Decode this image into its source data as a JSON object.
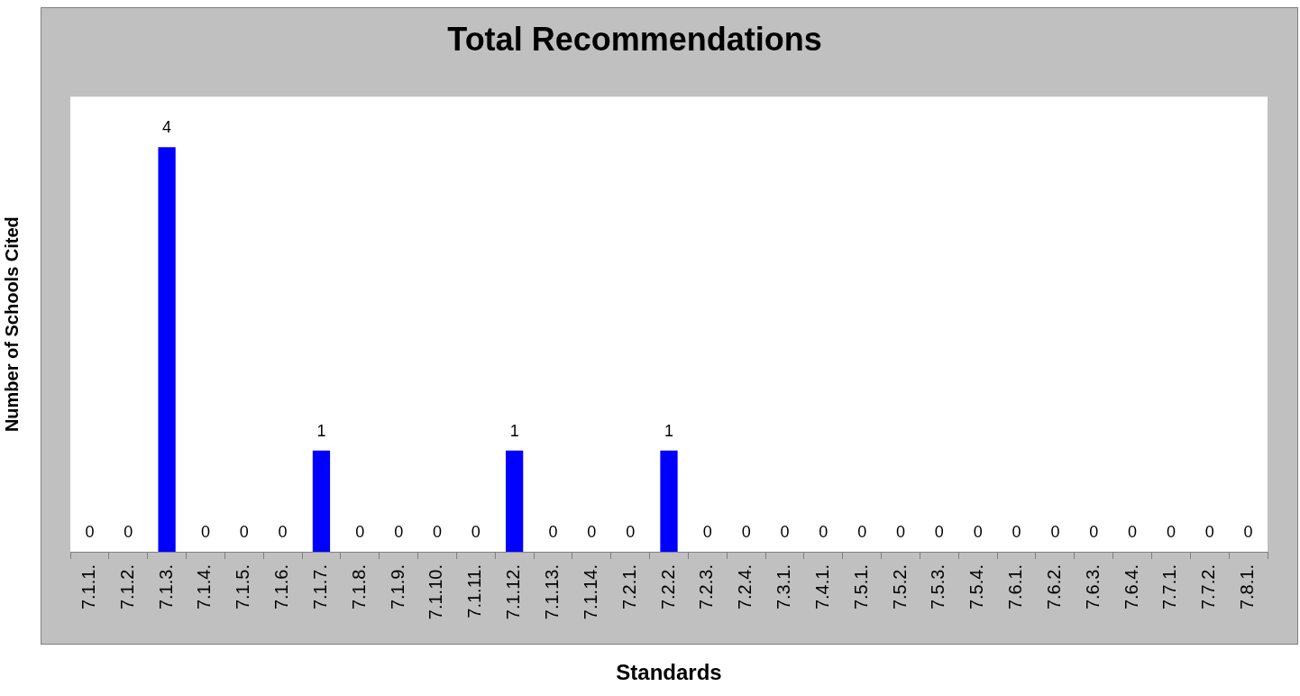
{
  "chart_data": {
    "type": "bar",
    "title": "Total Recommendations",
    "xlabel": "Standards",
    "ylabel": "Number of Schools Cited",
    "categories": [
      "7.1.1.",
      "7.1.2.",
      "7.1.3.",
      "7.1.4.",
      "7.1.5.",
      "7.1.6.",
      "7.1.7.",
      "7.1.8.",
      "7.1.9.",
      "7.1.10.",
      "7.1.11.",
      "7.1.12.",
      "7.1.13.",
      "7.1.14.",
      "7.2.1.",
      "7.2.2.",
      "7.2.3.",
      "7.2.4.",
      "7.3.1.",
      "7.4.1.",
      "7.5.1.",
      "7.5.2.",
      "7.5.3.",
      "7.5.4.",
      "7.6.1.",
      "7.6.2.",
      "7.6.3.",
      "7.6.4.",
      "7.7.1.",
      "7.7.2.",
      "7.8.1."
    ],
    "values": [
      0,
      0,
      4,
      0,
      0,
      0,
      1,
      0,
      0,
      0,
      0,
      1,
      0,
      0,
      0,
      1,
      0,
      0,
      0,
      0,
      0,
      0,
      0,
      0,
      0,
      0,
      0,
      0,
      0,
      0,
      0
    ],
    "color": "#0000ff",
    "ylim": [
      0,
      4.5
    ],
    "data_labels": true,
    "tick_labels": "x",
    "grid": false,
    "legend": false
  }
}
